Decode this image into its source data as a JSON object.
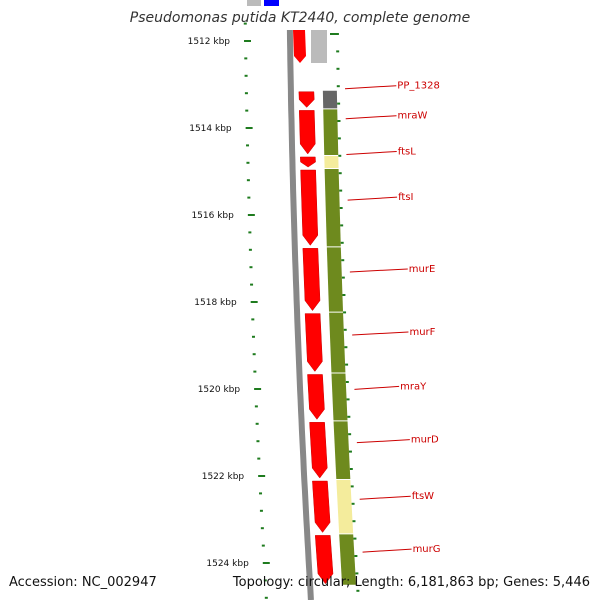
{
  "title": "Pseudomonas putida KT2440, complete genome",
  "accession": "Accession: NC_002947",
  "summary": "Topology: circular; Length: 6,181,863 bp; Genes: 5,446",
  "colors": {
    "tick": "#1e7b1e",
    "label": "#cc0000",
    "backbone": "#888888",
    "forward_gene": "#ff0000",
    "cds_feature": "#6e8a1e",
    "highlight_feature": "#f4ec9c",
    "gray_feature": "#666666",
    "blue_feature": "#0000ff"
  },
  "scale": {
    "major_ticks": [
      {
        "label": "1512 kbp",
        "kbp": 1512
      },
      {
        "label": "1514 kbp",
        "kbp": 1514
      },
      {
        "label": "1516 kbp",
        "kbp": 1516
      },
      {
        "label": "1518 kbp",
        "kbp": 1518
      },
      {
        "label": "1520 kbp",
        "kbp": 1520
      },
      {
        "label": "1522 kbp",
        "kbp": 1522
      },
      {
        "label": "1524 kbp",
        "kbp": 1524
      }
    ]
  },
  "genes": [
    {
      "label": "PP_1328",
      "start_kbp": 1513.12,
      "end_kbp": 1513.55
    },
    {
      "label": "mraW",
      "start_kbp": 1513.55,
      "end_kbp": 1514.62
    },
    {
      "label": "ftsL",
      "start_kbp": 1514.62,
      "end_kbp": 1514.92
    },
    {
      "label": "ftsI",
      "start_kbp": 1514.92,
      "end_kbp": 1516.72
    },
    {
      "label": "murE",
      "start_kbp": 1516.72,
      "end_kbp": 1518.22
    },
    {
      "label": "murF",
      "start_kbp": 1518.22,
      "end_kbp": 1519.62
    },
    {
      "label": "mraY",
      "start_kbp": 1519.62,
      "end_kbp": 1520.72
    },
    {
      "label": "murD",
      "start_kbp": 1520.72,
      "end_kbp": 1522.07
    },
    {
      "label": "ftsW",
      "start_kbp": 1522.07,
      "end_kbp": 1523.32
    },
    {
      "label": "murG",
      "start_kbp": 1523.32,
      "end_kbp": 1524.5
    }
  ]
}
